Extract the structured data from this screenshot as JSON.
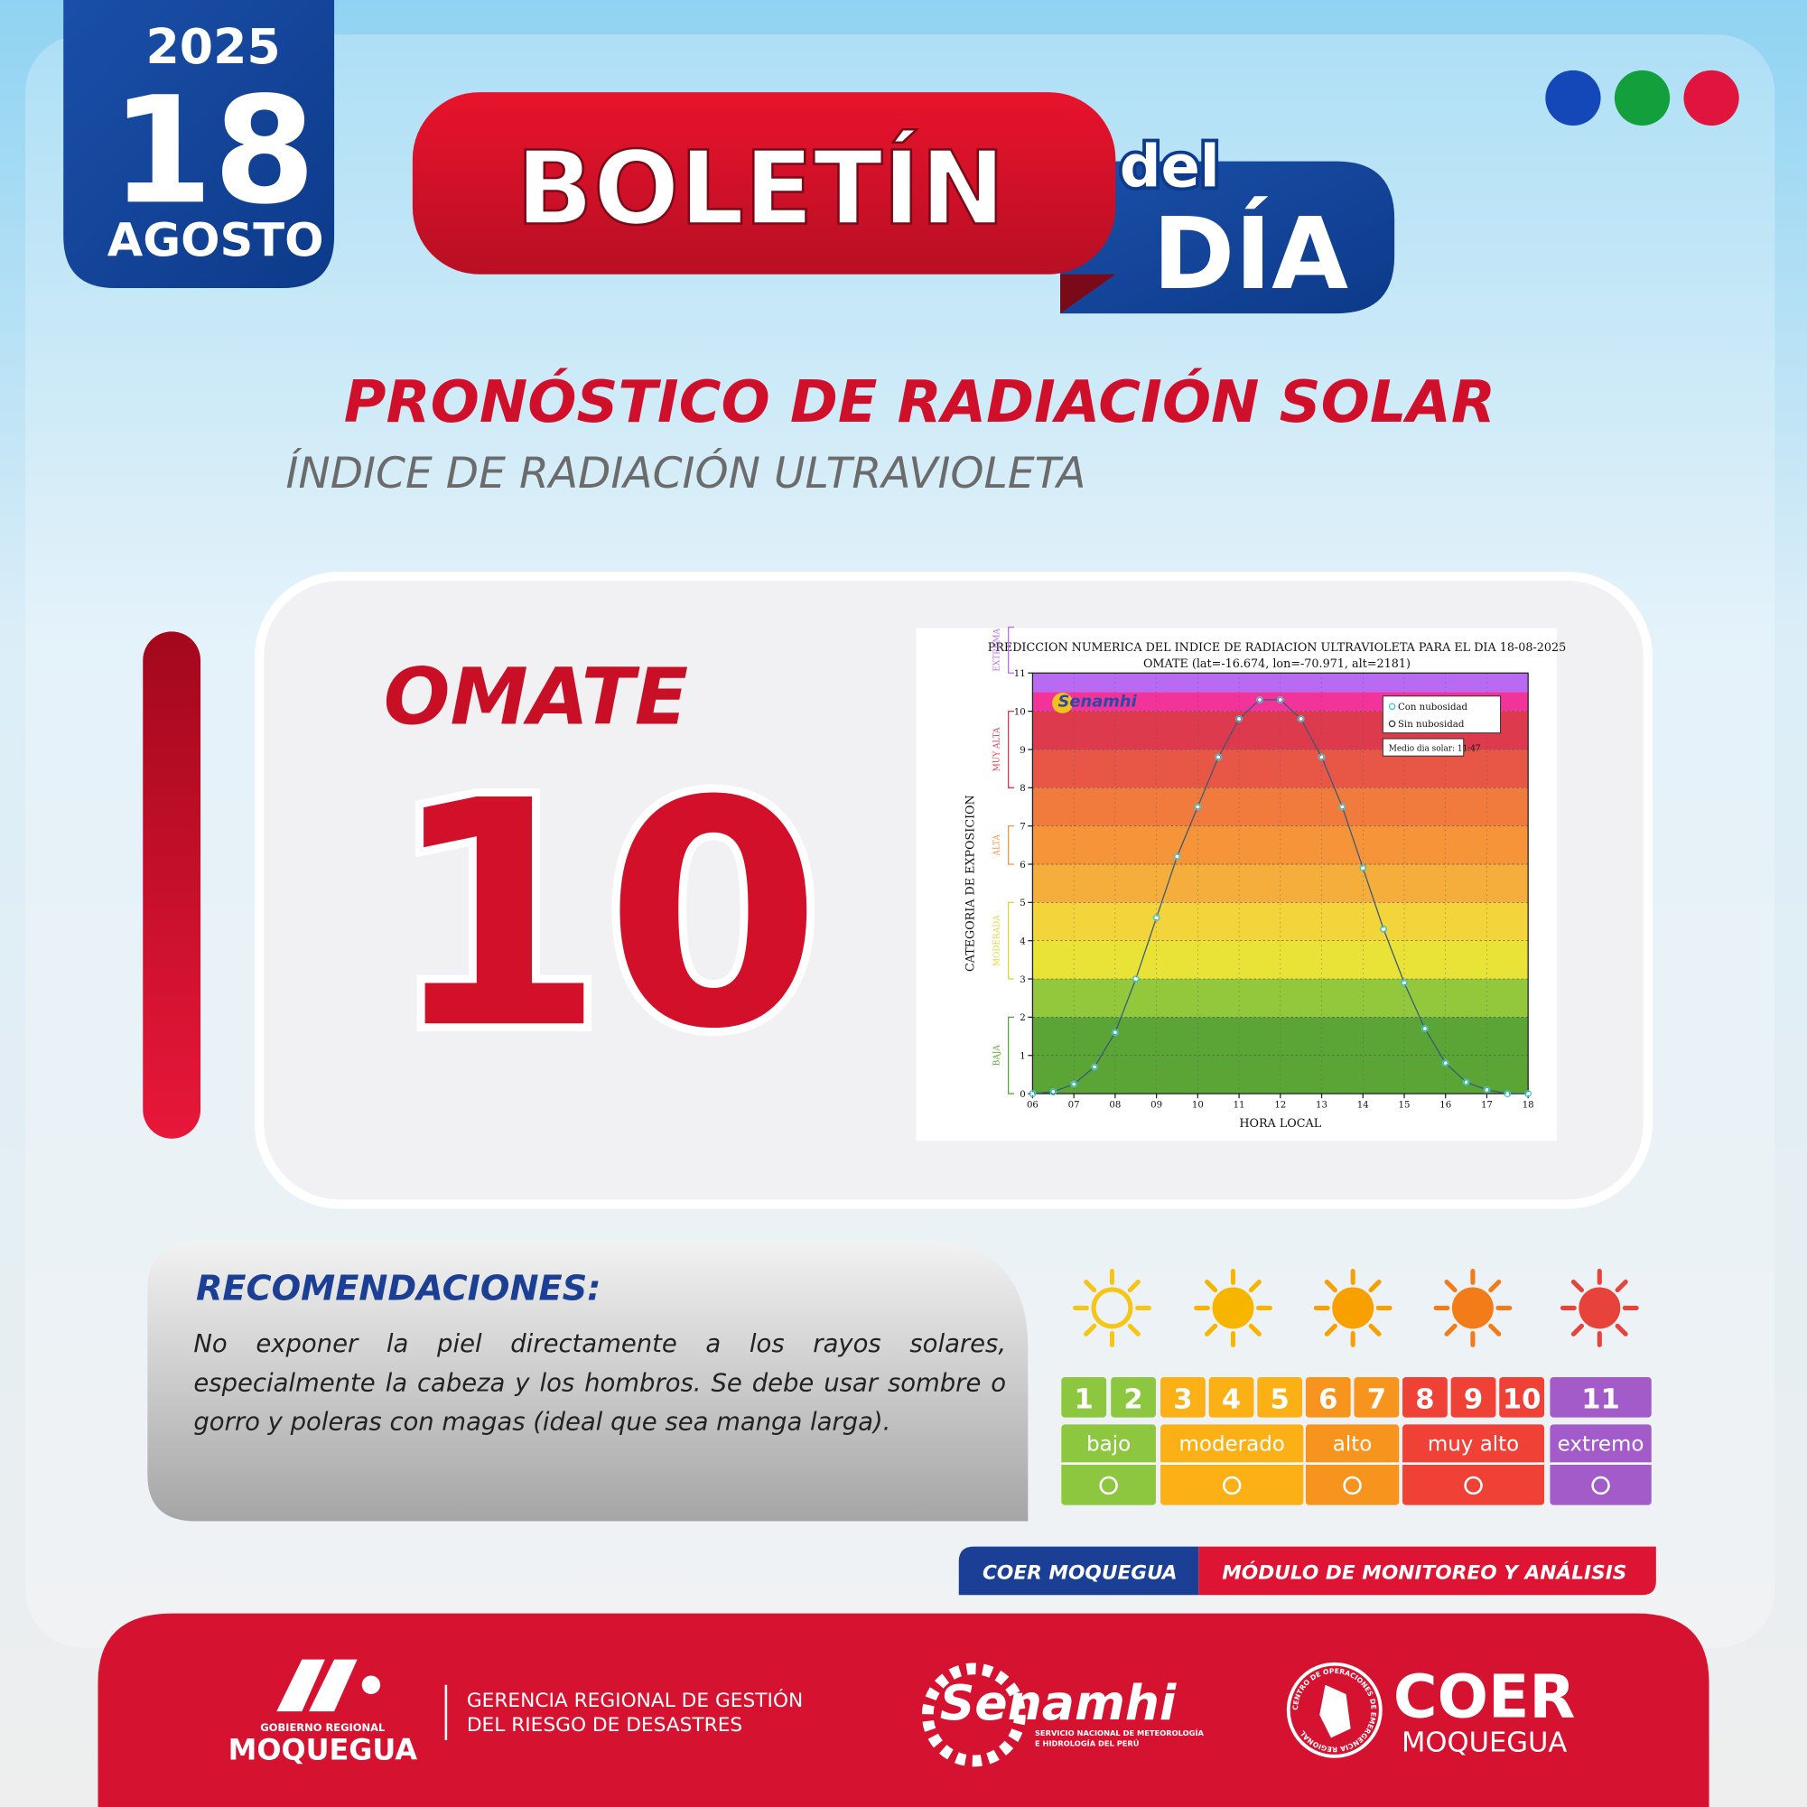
{
  "header": {
    "year": "2025",
    "day": "18",
    "month": "AGOSTO",
    "boletin": "BOLETÍN",
    "del": "del",
    "dia": "DÍA"
  },
  "title": "PRONÓSTICO DE RADIACIÓN SOLAR",
  "subtitle": "ÍNDICE DE RADIACIÓN ULTRAVIOLETA",
  "location": "OMATE",
  "uv_index": 10,
  "chart_data": {
    "type": "line",
    "title": "PREDICCION NUMERICA DEL INDICE DE RADIACION ULTRAVIOLETA PARA EL DIA 18-08-2025",
    "subtitle": "OMATE (lat=-16.674, lon=-70.971, alt=2181)",
    "logo": "Senamhi",
    "xlabel": "HORA LOCAL",
    "ylabel": "CATEGORIA DE EXPOSICION",
    "annotation": "Medio dia solar: 11:47",
    "x": [
      6,
      6.5,
      7,
      7.5,
      8,
      8.5,
      9,
      9.5,
      10,
      10.5,
      11,
      11.5,
      12,
      12.5,
      13,
      13.5,
      14,
      14.5,
      15,
      15.5,
      16,
      16.5,
      17,
      17.5,
      18
    ],
    "series": [
      {
        "name": "Con nubosidad",
        "color": "#3cc8d8",
        "values": [
          0,
          0.05,
          0.25,
          0.7,
          1.6,
          3.0,
          4.6,
          6.2,
          7.5,
          8.8,
          9.8,
          10.3,
          10.3,
          9.8,
          8.8,
          7.5,
          5.9,
          4.3,
          2.9,
          1.7,
          0.8,
          0.3,
          0.1,
          0,
          0
        ]
      },
      {
        "name": "Sin nubosidad",
        "color": "#ffffff",
        "values": [
          0,
          0.05,
          0.25,
          0.7,
          1.6,
          3.0,
          4.6,
          6.2,
          7.5,
          8.8,
          9.8,
          10.3,
          10.3,
          9.8,
          8.8,
          7.5,
          5.9,
          4.3,
          2.9,
          1.7,
          0.8,
          0.3,
          0.1,
          0,
          0
        ]
      }
    ],
    "xlim": [
      6,
      18
    ],
    "ylim": [
      0,
      11
    ],
    "xticks": [
      {
        "value": 6,
        "label": "06"
      },
      {
        "value": 7,
        "label": "07"
      },
      {
        "value": 8,
        "label": "08"
      },
      {
        "value": 9,
        "label": "09"
      },
      10,
      11,
      12,
      13,
      14,
      15,
      16,
      17,
      18
    ],
    "yticks": [
      0,
      1,
      2,
      3,
      4,
      5,
      6,
      7,
      8,
      9,
      10,
      11
    ],
    "grid": true,
    "legend_position": "upper right",
    "bands": [
      {
        "from": 0,
        "to": 2,
        "color": "#5aa536"
      },
      {
        "from": 2,
        "to": 3,
        "color": "#93c83c"
      },
      {
        "from": 3,
        "to": 4,
        "color": "#e9e337"
      },
      {
        "from": 4,
        "to": 5,
        "color": "#f3d53b"
      },
      {
        "from": 5,
        "to": 6,
        "color": "#f5ae3b"
      },
      {
        "from": 6,
        "to": 7,
        "color": "#f6943a"
      },
      {
        "from": 7,
        "to": 8,
        "color": "#f07b3c"
      },
      {
        "from": 8,
        "to": 9,
        "color": "#e85746"
      },
      {
        "from": 9,
        "to": 10,
        "color": "#de3a4e"
      },
      {
        "from": 10,
        "to": 10.5,
        "color": "#f2339a"
      },
      {
        "from": 10.5,
        "to": 11,
        "color": "#b86af2"
      }
    ],
    "exposure_categories": [
      {
        "label": "BAJA",
        "from": 0,
        "to": 2,
        "color": "#5aa536"
      },
      {
        "label": "MODERADA",
        "from": 3,
        "to": 5,
        "color": "#e3d43a"
      },
      {
        "label": "ALTA",
        "from": 6,
        "to": 7,
        "color": "#f6943a"
      },
      {
        "label": "MUY ALTA",
        "from": 8,
        "to": 10,
        "color": "#de3a4e"
      },
      {
        "label": "EXTREMA",
        "from": 11,
        "to": 12.2,
        "color": "#b86af2"
      }
    ]
  },
  "recommendations": {
    "heading": "RECOMENDACIONES:",
    "text": "No exponer la piel directamente a los rayos solares, especialmente la cabeza y los hombros. Se debe usar sombre o gorro y poleras con magas (ideal que sea manga larga)."
  },
  "uv_scale": {
    "levels": [
      {
        "value": 1,
        "color": "#8dc63f"
      },
      {
        "value": 2,
        "color": "#8dc63f"
      },
      {
        "value": 3,
        "color": "#fbb116"
      },
      {
        "value": 4,
        "color": "#fbb116"
      },
      {
        "value": 5,
        "color": "#fbb116"
      },
      {
        "value": 6,
        "color": "#f7941d"
      },
      {
        "value": 7,
        "color": "#f7941d"
      },
      {
        "value": 8,
        "color": "#ef4136"
      },
      {
        "value": 9,
        "color": "#ef4136"
      },
      {
        "value": 10,
        "color": "#ef4136"
      },
      {
        "value": 11,
        "color": "#a35bc9"
      }
    ],
    "groups": [
      {
        "label": "bajo",
        "color": "#8dc63f"
      },
      {
        "label": "moderado",
        "color": "#fbb116"
      },
      {
        "label": "alto",
        "color": "#f7941d"
      },
      {
        "label": "muy alto",
        "color": "#ef4136"
      },
      {
        "label": "extremo",
        "color": "#a35bc9"
      }
    ]
  },
  "banner": {
    "left": "COER MOQUEGUA",
    "right": "MÓDULO DE MONITOREO Y ANÁLISIS"
  },
  "footer": {
    "gobierno_small": "GOBIERNO REGIONAL",
    "gobierno": "MOQUEGUA",
    "gerencia_1": "GERENCIA REGIONAL DE GESTIÓN",
    "gerencia_2": "DEL RIESGO DE DESASTRES",
    "senamhi": "Senamhi",
    "senamhi_1": "SERVICIO NACIONAL DE METEOROLOGÍA",
    "senamhi_2": "E HIDROLOGÍA DEL PERÚ",
    "coer": "COER",
    "coer_sub": "MOQUEGUA",
    "coer_ring": "CENTRO DE OPERACIONES DE EMERGENCIA REGIONAL"
  }
}
